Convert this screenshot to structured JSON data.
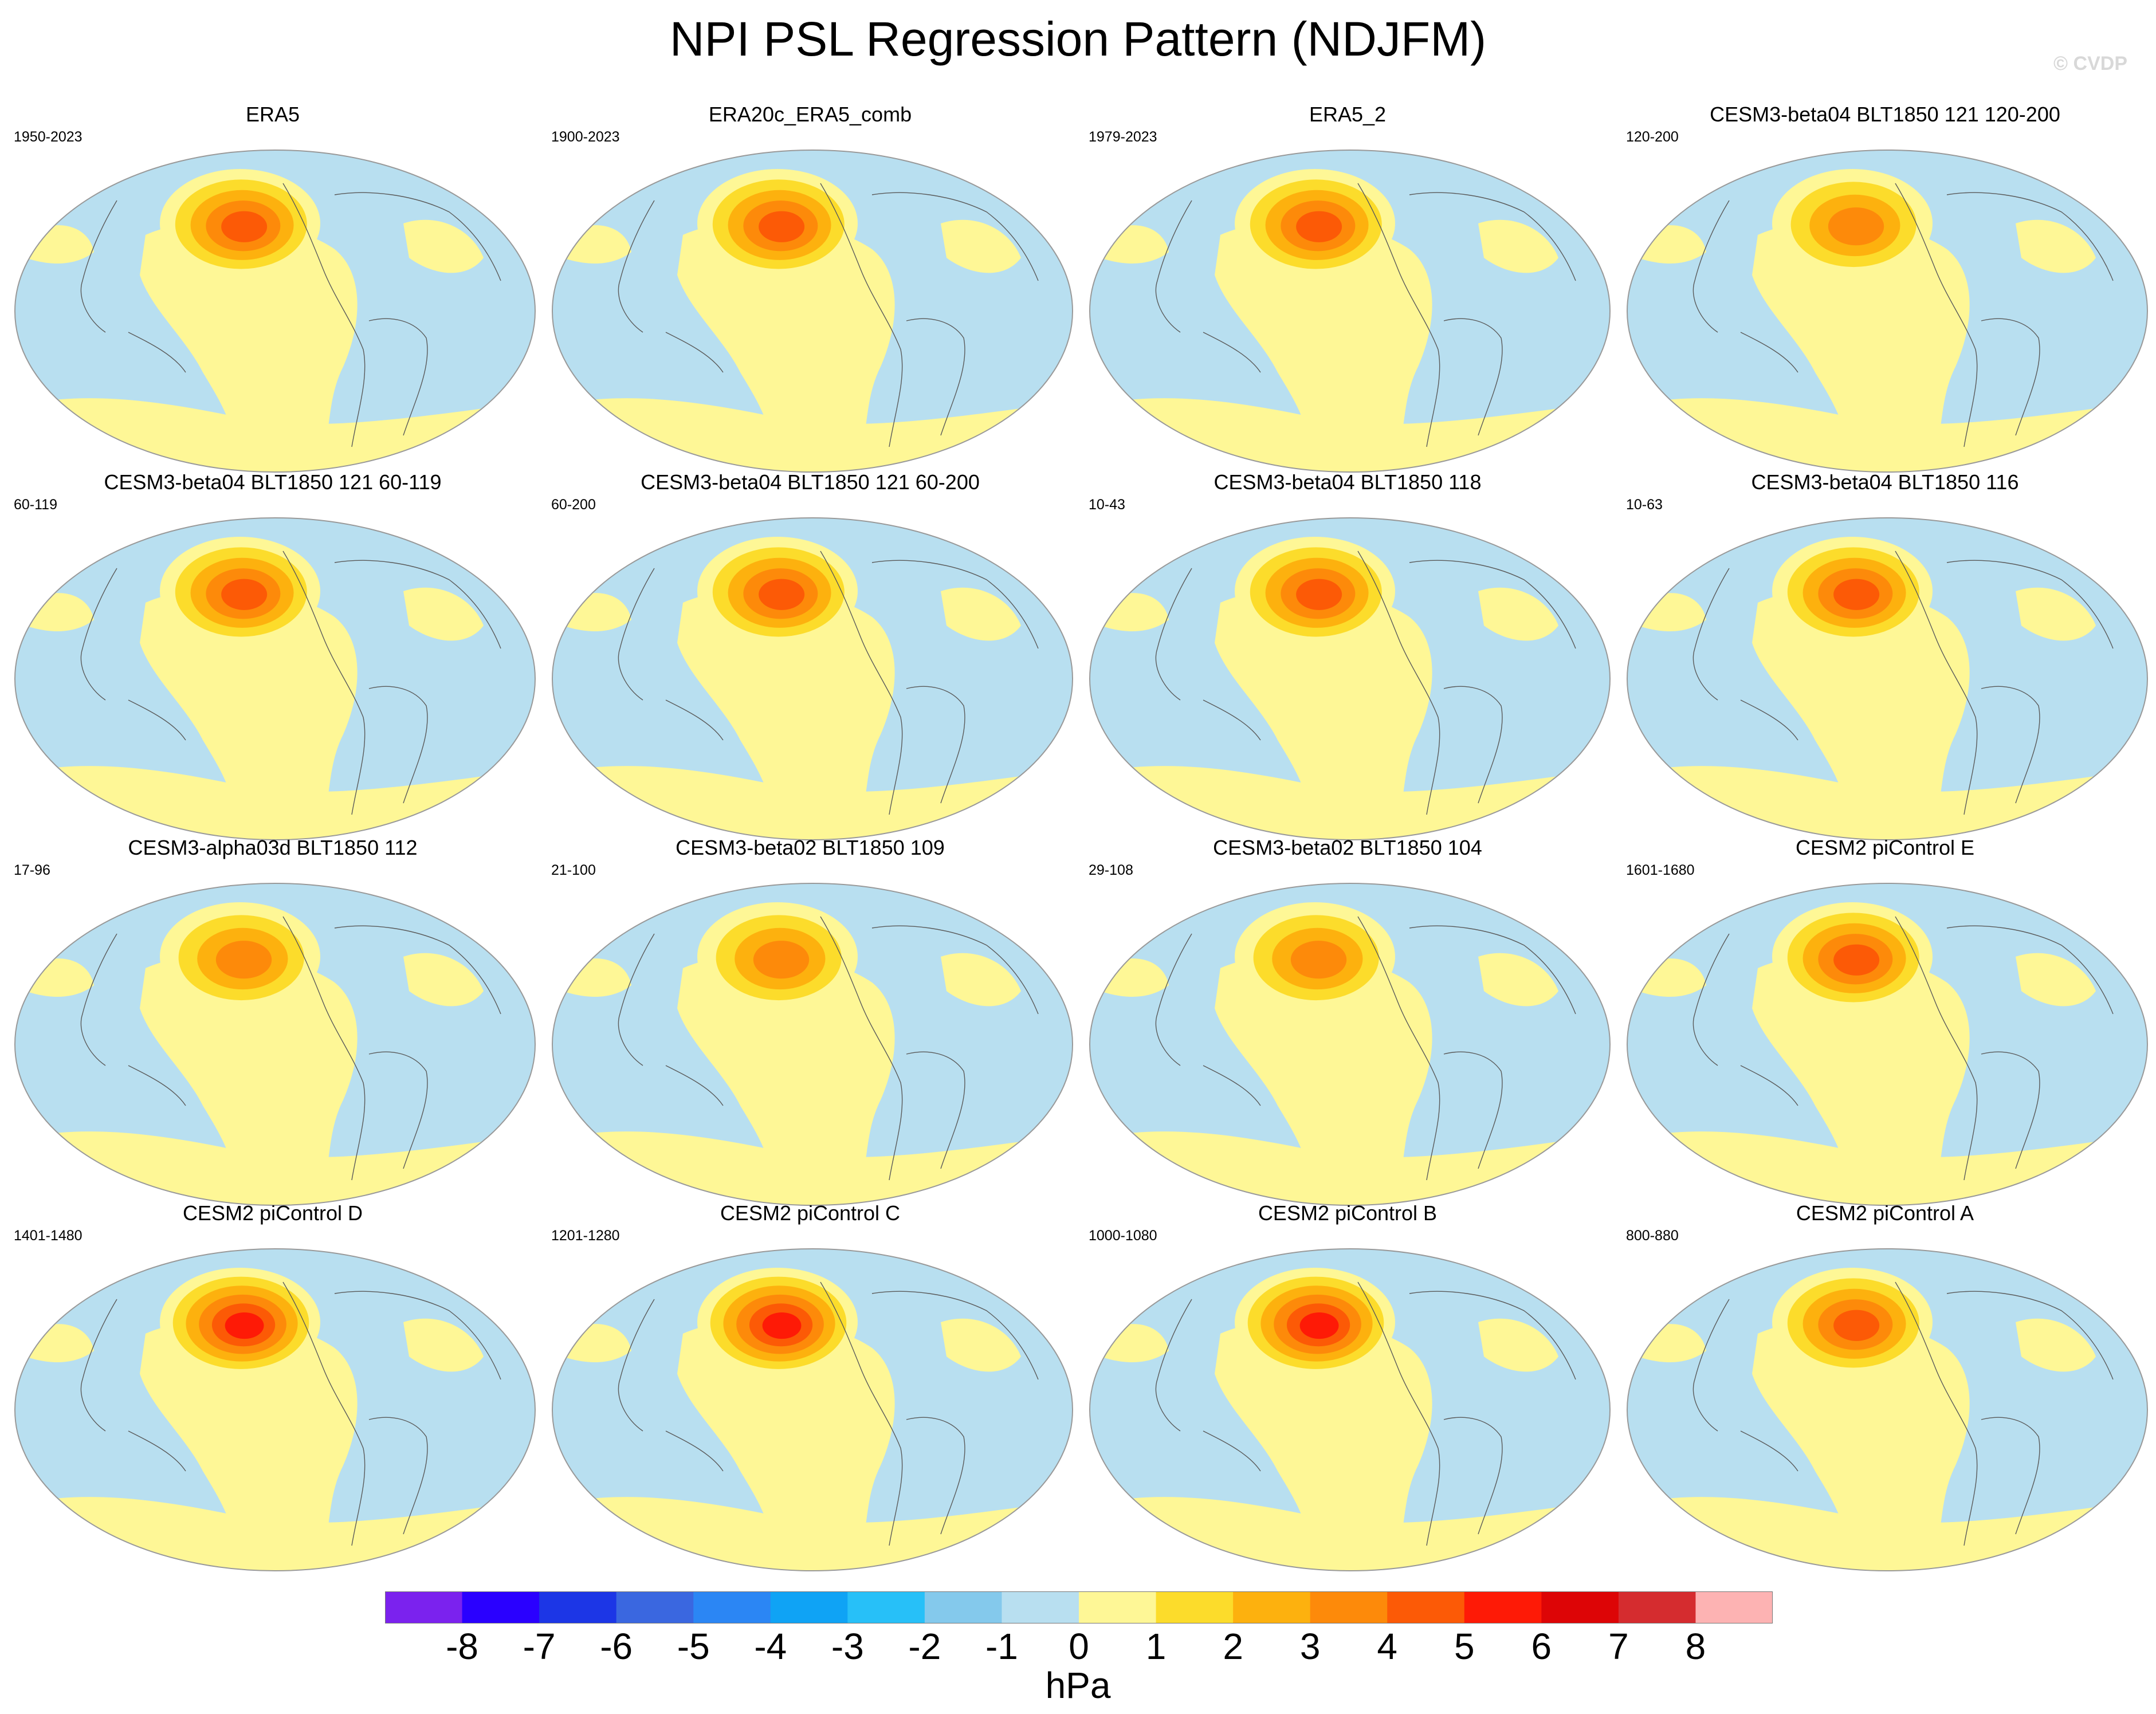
{
  "title": "NPI PSL Regression Pattern (NDJFM)",
  "credit": "© CVDP",
  "units": "hPa",
  "colors": {
    "ocean_negative": "#b8dff0",
    "weak_positive": "#fef796",
    "land_outline": "#5a5a5a",
    "panel_border": "#999999"
  },
  "colorbar": {
    "colors": [
      "#7b22ee",
      "#2a00ff",
      "#1c36e6",
      "#3a67e0",
      "#2b86f4",
      "#0fa3f5",
      "#27c0f8",
      "#84c9ec",
      "#b8dff0",
      "#fef796",
      "#fcdc2b",
      "#fdb10e",
      "#fd8a0a",
      "#fc5a06",
      "#fe1a06",
      "#dd0506",
      "#d52c2f",
      "#fdb3b3"
    ],
    "labels": [
      "-8",
      "-7",
      "-6",
      "-5",
      "-4",
      "-3",
      "-2",
      "-1",
      "0",
      "1",
      "2",
      "3",
      "4",
      "5",
      "6",
      "7",
      "8"
    ]
  },
  "panels": [
    {
      "title": "ERA5",
      "period": "1950-2023",
      "peak": 5
    },
    {
      "title": "ERA20c_ERA5_comb",
      "period": "1900-2023",
      "peak": 5
    },
    {
      "title": "ERA5_2",
      "period": "1979-2023",
      "peak": 5
    },
    {
      "title": "CESM3-beta04 BLT1850 121 120-200",
      "period": "120-200",
      "peak": 4
    },
    {
      "title": "CESM3-beta04 BLT1850 121 60-119",
      "period": "60-119",
      "peak": 5
    },
    {
      "title": "CESM3-beta04 BLT1850 121 60-200",
      "period": "60-200",
      "peak": 5
    },
    {
      "title": "CESM3-beta04 BLT1850 118",
      "period": "10-43",
      "peak": 5
    },
    {
      "title": "CESM3-beta04 BLT1850 116",
      "period": "10-63",
      "peak": 5
    },
    {
      "title": "CESM3-alpha03d BLT1850 112",
      "period": "17-96",
      "peak": 4
    },
    {
      "title": "CESM3-beta02 BLT1850 109",
      "period": "21-100",
      "peak": 4
    },
    {
      "title": "CESM3-beta02 BLT1850 104",
      "period": "29-108",
      "peak": 4
    },
    {
      "title": "CESM2 piControl E",
      "period": "1601-1680",
      "peak": 5
    },
    {
      "title": "CESM2 piControl D",
      "period": "1401-1480",
      "peak": 6
    },
    {
      "title": "CESM2 piControl C",
      "period": "1201-1280",
      "peak": 6
    },
    {
      "title": "CESM2 piControl B",
      "period": "1000-1080",
      "peak": 6
    },
    {
      "title": "CESM2 piControl A",
      "period": "800-880",
      "peak": 5
    }
  ]
}
